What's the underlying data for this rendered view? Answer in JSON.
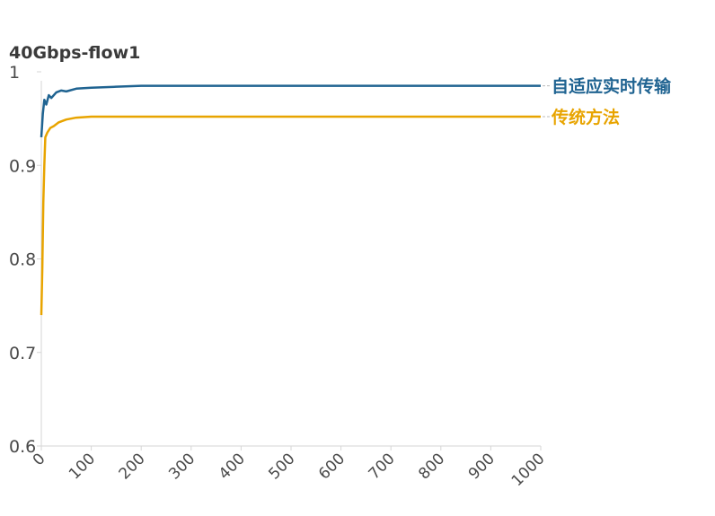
{
  "chart_data": {
    "type": "line",
    "title": "40Gbps-flow1",
    "xlabel": "",
    "ylabel": "",
    "xlim": [
      0,
      1000
    ],
    "ylim": [
      0.6,
      1
    ],
    "x_ticks": [
      0,
      100,
      200,
      300,
      400,
      500,
      600,
      700,
      800,
      900,
      1000
    ],
    "y_ticks": [
      0.6,
      0.7,
      0.8,
      0.9,
      1
    ],
    "grid": false,
    "legend_placement": "right, at line ends",
    "series": [
      {
        "name": "自适应实时传输",
        "color": "#1f6391",
        "points": [
          [
            0,
            0.93
          ],
          [
            3,
            0.955
          ],
          [
            6,
            0.97
          ],
          [
            10,
            0.965
          ],
          [
            15,
            0.975
          ],
          [
            20,
            0.972
          ],
          [
            30,
            0.978
          ],
          [
            40,
            0.98
          ],
          [
            50,
            0.979
          ],
          [
            70,
            0.982
          ],
          [
            100,
            0.983
          ],
          [
            150,
            0.984
          ],
          [
            200,
            0.985
          ],
          [
            300,
            0.985
          ],
          [
            400,
            0.985
          ],
          [
            500,
            0.985
          ],
          [
            600,
            0.985
          ],
          [
            700,
            0.985
          ],
          [
            800,
            0.985
          ],
          [
            900,
            0.985
          ],
          [
            1000,
            0.985
          ]
        ]
      },
      {
        "name": "传统方法",
        "color": "#e8a400",
        "points": [
          [
            0,
            0.74
          ],
          [
            2,
            0.79
          ],
          [
            4,
            0.86
          ],
          [
            6,
            0.9
          ],
          [
            8,
            0.93
          ],
          [
            12,
            0.935
          ],
          [
            18,
            0.94
          ],
          [
            25,
            0.942
          ],
          [
            35,
            0.946
          ],
          [
            50,
            0.949
          ],
          [
            70,
            0.951
          ],
          [
            100,
            0.952
          ],
          [
            200,
            0.952
          ],
          [
            300,
            0.952
          ],
          [
            400,
            0.952
          ],
          [
            500,
            0.952
          ],
          [
            600,
            0.952
          ],
          [
            700,
            0.952
          ],
          [
            800,
            0.952
          ],
          [
            900,
            0.952
          ],
          [
            1000,
            0.952
          ]
        ]
      }
    ]
  }
}
